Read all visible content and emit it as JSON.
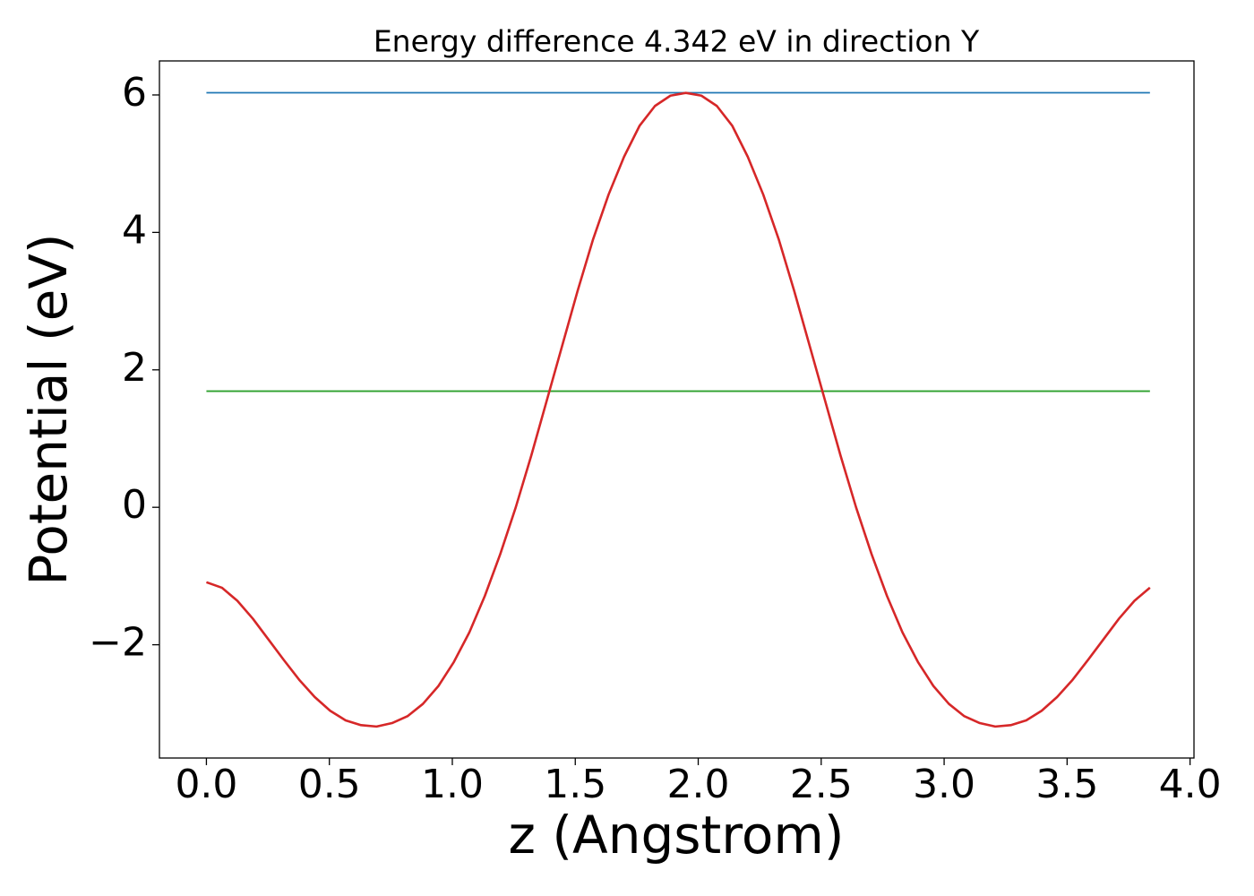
{
  "chart_data": {
    "type": "line",
    "title": "Energy difference 4.342 eV in direction Y",
    "xlabel": "z (Angstrom)",
    "ylabel": "Potential (eV)",
    "xlim": [
      -0.191,
      4.016
    ],
    "ylim": [
      -3.648,
      6.495
    ],
    "xticks": [
      {
        "value": 0,
        "label": "0.0"
      },
      {
        "value": 0.5,
        "label": "0.5"
      },
      {
        "value": 1,
        "label": "1.0"
      },
      {
        "value": 1.5,
        "label": "1.5"
      },
      {
        "value": 2,
        "label": "2.0"
      },
      {
        "value": 2.5,
        "label": "2.5"
      },
      {
        "value": 3,
        "label": "3.0"
      },
      {
        "value": 3.5,
        "label": "3.5"
      },
      {
        "value": 4,
        "label": "4.0"
      }
    ],
    "yticks": [
      {
        "value": -2,
        "label": "−2"
      },
      0,
      2,
      4,
      6
    ],
    "grid": false,
    "series": [
      {
        "color": "#1f77b4",
        "x": [
          0,
          3.8369
        ],
        "values": [
          6.032,
          6.032
        ]
      },
      {
        "color": "#2ca02c",
        "x": [
          0,
          3.8369
        ],
        "values": [
          1.69,
          1.69
        ]
      },
      {
        "color": "#d62728",
        "x": [
          0,
          0.0629,
          0.1258,
          0.1887,
          0.2516,
          0.3145,
          0.3774,
          0.4403,
          0.5032,
          0.5661,
          0.629,
          0.6919,
          0.7548,
          0.8177,
          0.8806,
          0.9435,
          1.0064,
          1.0693,
          1.1322,
          1.1951,
          1.258,
          1.3209,
          1.3838,
          1.4467,
          1.5096,
          1.5725,
          1.6354,
          1.6983,
          1.7612,
          1.8241,
          1.887,
          1.9499,
          2.0128,
          2.0757,
          2.1386,
          2.2015,
          2.2644,
          2.3273,
          2.3902,
          2.4531,
          2.516,
          2.5789,
          2.6418,
          2.7047,
          2.7676,
          2.8305,
          2.8934,
          2.9563,
          3.0192,
          3.0821,
          3.145,
          3.2079,
          3.2708,
          3.3337,
          3.3966,
          3.4595,
          3.5224,
          3.5853,
          3.6482,
          3.7111,
          3.774,
          3.8369
        ],
        "values": [
          -1.09,
          -1.17,
          -1.36,
          -1.62,
          -1.92,
          -2.22,
          -2.51,
          -2.76,
          -2.96,
          -3.1,
          -3.17,
          -3.19,
          -3.14,
          -3.04,
          -2.86,
          -2.6,
          -2.25,
          -1.82,
          -1.29,
          -0.68,
          0.0,
          0.75,
          1.55,
          2.35,
          3.15,
          3.9,
          4.55,
          5.1,
          5.55,
          5.84,
          5.99,
          6.03,
          5.99,
          5.84,
          5.55,
          5.1,
          4.55,
          3.9,
          3.15,
          2.35,
          1.55,
          0.75,
          0.0,
          -0.68,
          -1.29,
          -1.82,
          -2.25,
          -2.6,
          -2.86,
          -3.04,
          -3.14,
          -3.19,
          -3.17,
          -3.1,
          -2.96,
          -2.76,
          -2.51,
          -2.22,
          -1.92,
          -1.62,
          -1.36,
          -1.17
        ]
      }
    ]
  }
}
